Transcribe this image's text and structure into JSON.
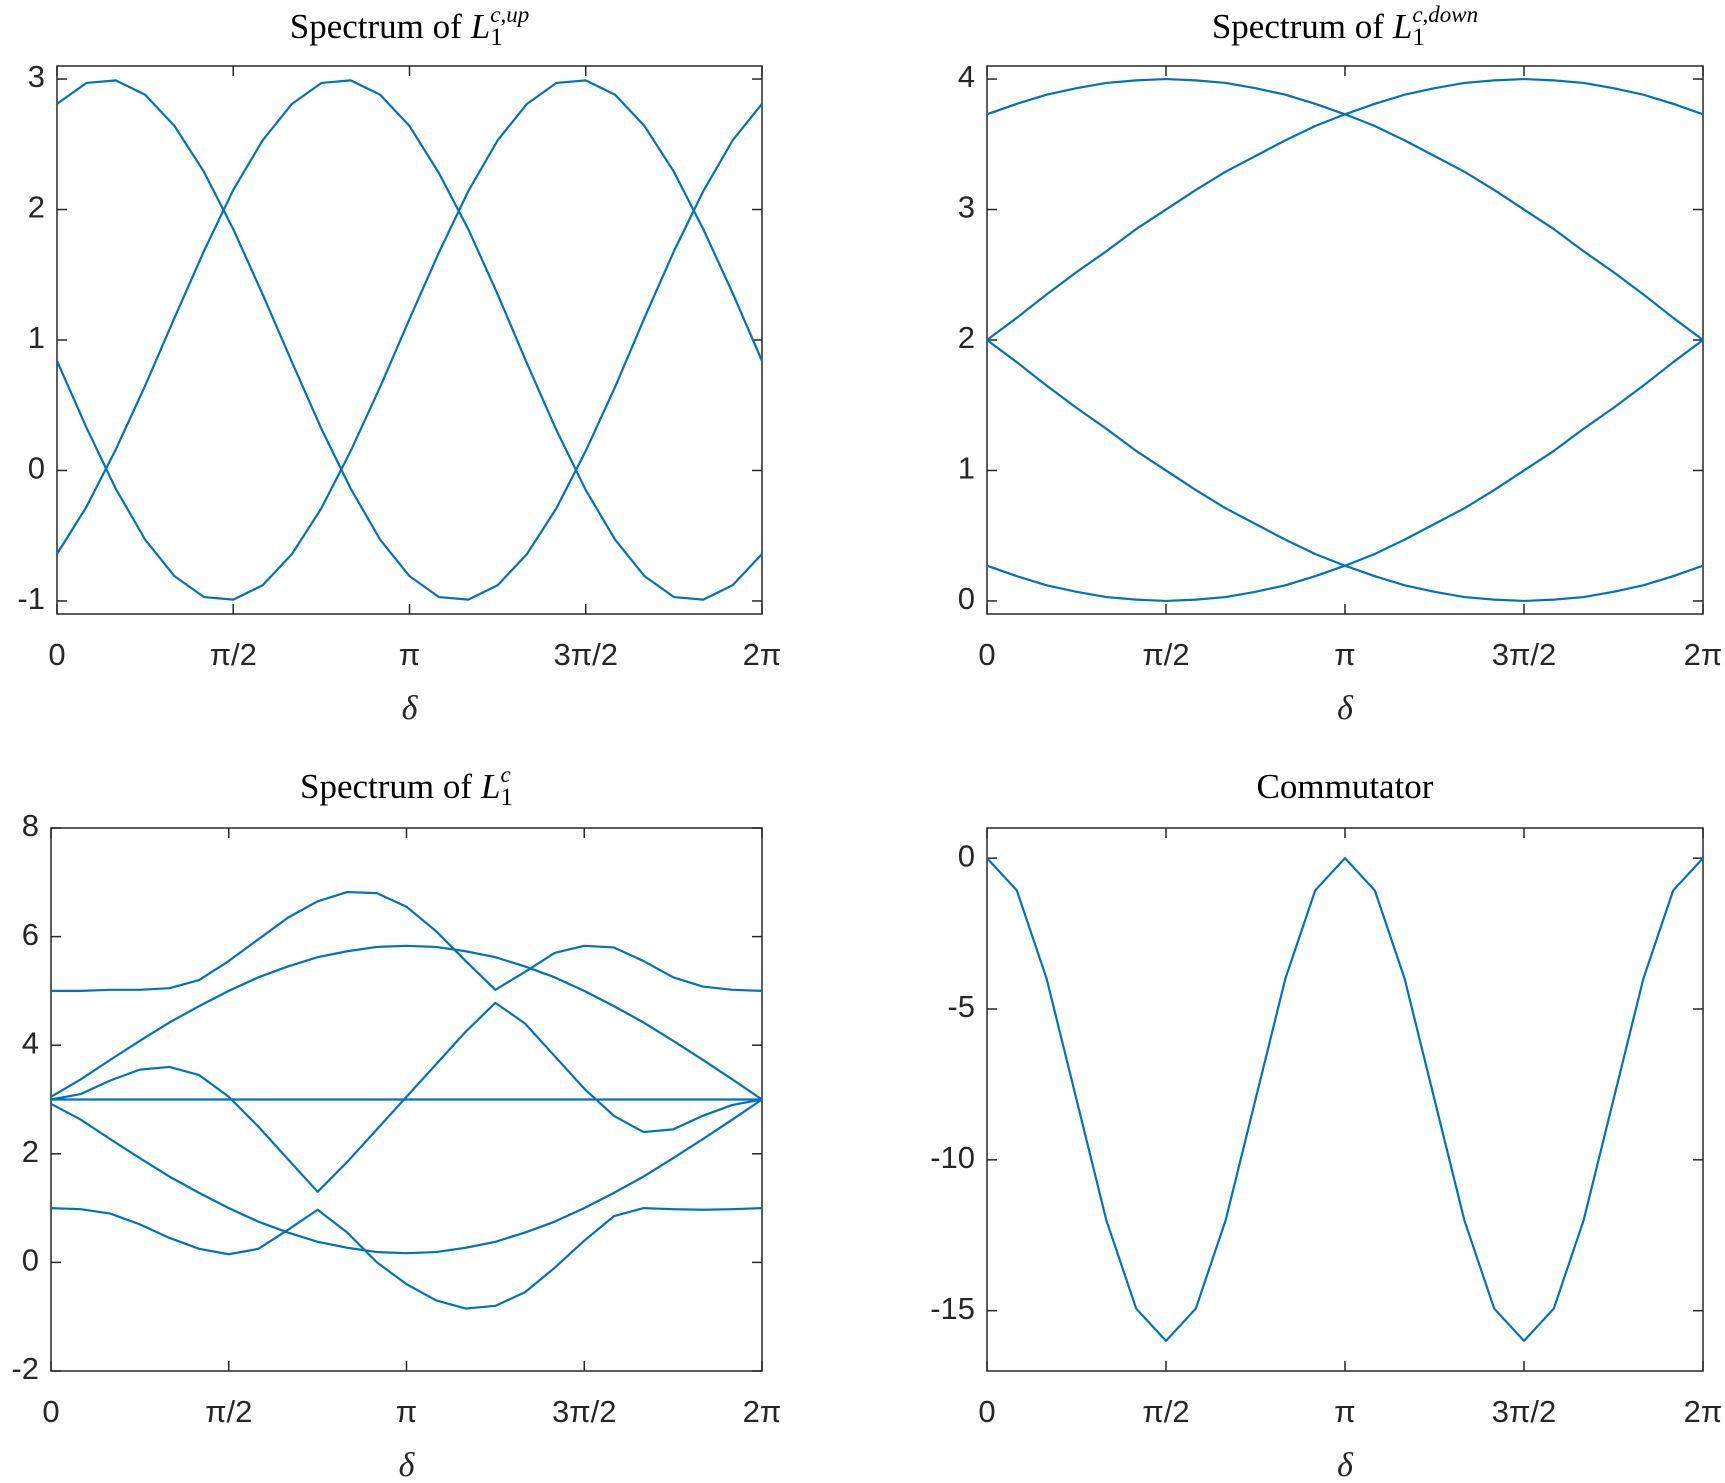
{
  "chart_data": [
    {
      "type": "line",
      "title": {
        "text": "Spectrum of",
        "symbol": "L",
        "subscript": "1",
        "superscript": "c,up"
      },
      "xlabel": "δ",
      "color": "#0072bd",
      "x": [
        0,
        0.2618,
        0.5236,
        0.7854,
        1.0472,
        1.309,
        1.5708,
        1.8326,
        2.0944,
        2.3562,
        2.618,
        2.8798,
        3.1416,
        3.4034,
        3.6652,
        3.927,
        4.1888,
        4.4506,
        4.7124,
        4.9742,
        5.236,
        5.4978,
        5.7596,
        6.0214,
        6.2832
      ],
      "series": [
        {
          "values": [
            2.81,
            2.97,
            2.99,
            2.88,
            2.64,
            2.29,
            1.85,
            1.35,
            0.83,
            0.32,
            -0.14,
            -0.53,
            -0.81,
            -0.97,
            -0.99,
            -0.88,
            -0.64,
            -0.29,
            0.15,
            0.64,
            1.17,
            1.68,
            2.14,
            2.53,
            2.81
          ]
        },
        {
          "values": [
            -0.64,
            -0.28,
            0.16,
            0.65,
            1.17,
            1.68,
            2.15,
            2.53,
            2.81,
            2.97,
            2.99,
            2.88,
            2.64,
            2.28,
            1.85,
            1.35,
            0.82,
            0.31,
            -0.15,
            -0.53,
            -0.81,
            -0.97,
            -0.99,
            -0.88,
            -0.64
          ]
        },
        {
          "values": [
            0.84,
            0.33,
            -0.14,
            -0.53,
            -0.81,
            -0.97,
            -0.99,
            -0.88,
            -0.64,
            -0.29,
            0.15,
            0.64,
            1.16,
            1.67,
            2.14,
            2.53,
            2.81,
            2.97,
            2.99,
            2.88,
            2.64,
            2.29,
            1.85,
            1.36,
            0.84
          ]
        }
      ],
      "xlim": [
        0,
        6.2832
      ],
      "xticks": [
        0,
        {
          "value": 1.5708,
          "label": "π/2"
        },
        {
          "value": 3.1416,
          "label": "π"
        },
        {
          "value": 4.7124,
          "label": "3π/2"
        },
        {
          "value": 6.2832,
          "label": "2π"
        }
      ],
      "ylim": [
        -1.1,
        3.1
      ],
      "yticks": [
        -1,
        0,
        1,
        2,
        3
      ],
      "grid": false
    },
    {
      "type": "line",
      "title": {
        "text": "Spectrum of",
        "symbol": "L",
        "subscript": "1",
        "superscript": "c,down"
      },
      "xlabel": "δ",
      "color": "#0072bd",
      "x": [
        0,
        0.2618,
        0.5236,
        0.7854,
        1.0472,
        1.309,
        1.5708,
        1.8326,
        2.0944,
        2.3562,
        2.618,
        2.8798,
        3.1416,
        3.4034,
        3.6652,
        3.927,
        4.1888,
        4.4506,
        4.7124,
        4.9742,
        5.236,
        5.4978,
        5.7596,
        6.0214,
        6.2832
      ],
      "series": [
        {
          "values": [
            3.73,
            3.81,
            3.88,
            3.93,
            3.97,
            3.99,
            4.0,
            3.99,
            3.97,
            3.93,
            3.88,
            3.81,
            3.73,
            3.64,
            3.53,
            3.41,
            3.29,
            3.15,
            3.0,
            2.85,
            2.68,
            2.52,
            2.35,
            2.17,
            2.0
          ]
        },
        {
          "values": [
            2.0,
            2.17,
            2.35,
            2.52,
            2.68,
            2.85,
            3.0,
            3.15,
            3.29,
            3.41,
            3.53,
            3.64,
            3.73,
            3.81,
            3.88,
            3.93,
            3.97,
            3.99,
            4.0,
            3.99,
            3.97,
            3.93,
            3.88,
            3.81,
            3.73
          ]
        },
        {
          "values": [
            0.27,
            0.19,
            0.12,
            0.07,
            0.03,
            0.01,
            0,
            0.01,
            0.03,
            0.07,
            0.12,
            0.19,
            0.27,
            0.36,
            0.47,
            0.59,
            0.71,
            0.85,
            1.0,
            1.15,
            1.32,
            1.48,
            1.65,
            1.83,
            2.0
          ]
        },
        {
          "values": [
            2.0,
            1.83,
            1.65,
            1.48,
            1.32,
            1.15,
            1.0,
            0.85,
            0.71,
            0.59,
            0.47,
            0.36,
            0.27,
            0.19,
            0.12,
            0.07,
            0.03,
            0.01,
            0,
            0.01,
            0.03,
            0.07,
            0.12,
            0.19,
            0.27
          ]
        }
      ],
      "xlim": [
        0,
        6.2832
      ],
      "xticks": [
        0,
        {
          "value": 1.5708,
          "label": "π/2"
        },
        {
          "value": 3.1416,
          "label": "π"
        },
        {
          "value": 4.7124,
          "label": "3π/2"
        },
        {
          "value": 6.2832,
          "label": "2π"
        }
      ],
      "ylim": [
        -0.1,
        4.1
      ],
      "yticks": [
        0,
        1,
        2,
        3,
        4
      ],
      "grid": false
    },
    {
      "type": "line",
      "title": {
        "text": "Spectrum of",
        "symbol": "L",
        "subscript": "1",
        "superscript": "c"
      },
      "xlabel": "δ",
      "color": "#0072bd",
      "x": [
        0,
        0.2618,
        0.5236,
        0.7854,
        1.0472,
        1.309,
        1.5708,
        1.8326,
        2.0944,
        2.3562,
        2.618,
        2.8798,
        3.1416,
        3.4034,
        3.6652,
        3.927,
        4.1888,
        4.4506,
        4.7124,
        4.9742,
        5.236,
        5.4978,
        5.7596,
        6.0214,
        6.2832
      ],
      "series": [
        {
          "values": [
            5.0,
            5.0,
            5.02,
            5.02,
            5.05,
            5.2,
            5.55,
            5.95,
            6.35,
            6.65,
            6.82,
            6.8,
            6.55,
            6.1,
            5.55,
            5.02,
            5.35,
            5.7,
            5.83,
            5.8,
            5.55,
            5.25,
            5.08,
            5.02,
            5.0
          ]
        },
        {
          "values": [
            3.05,
            3.37,
            3.73,
            4.08,
            4.42,
            4.72,
            5.0,
            5.25,
            5.45,
            5.62,
            5.73,
            5.81,
            5.83,
            5.81,
            5.73,
            5.62,
            5.45,
            5.25,
            5.0,
            4.72,
            4.42,
            4.08,
            3.73,
            3.37,
            3.0
          ]
        },
        {
          "values": [
            3,
            3,
            3,
            3,
            3,
            3,
            3,
            3,
            3,
            3,
            3,
            3,
            3,
            3,
            3,
            3,
            3,
            3,
            3,
            3,
            3,
            3,
            3,
            3,
            3
          ]
        },
        {
          "values": [
            3.0,
            3.1,
            3.35,
            3.55,
            3.6,
            3.45,
            3.05,
            2.5,
            1.9,
            1.3,
            1.85,
            2.45,
            3.05,
            3.65,
            4.25,
            4.78,
            4.4,
            3.8,
            3.2,
            2.7,
            2.4,
            2.45,
            2.7,
            2.9,
            3.0
          ]
        },
        {
          "values": [
            2.92,
            2.63,
            2.27,
            1.92,
            1.58,
            1.28,
            1.0,
            0.75,
            0.55,
            0.38,
            0.27,
            0.19,
            0.17,
            0.19,
            0.27,
            0.38,
            0.55,
            0.75,
            1.0,
            1.28,
            1.58,
            1.92,
            2.27,
            2.63,
            3.0
          ]
        },
        {
          "values": [
            1.0,
            0.98,
            0.9,
            0.7,
            0.45,
            0.25,
            0.15,
            0.25,
            0.6,
            0.97,
            0.55,
            0.0,
            -0.4,
            -0.7,
            -0.85,
            -0.8,
            -0.55,
            -0.1,
            0.4,
            0.85,
            1.0,
            0.98,
            0.97,
            0.98,
            1.0
          ]
        }
      ],
      "xlim": [
        0,
        6.2832
      ],
      "xticks": [
        0,
        {
          "value": 1.5708,
          "label": "π/2"
        },
        {
          "value": 3.1416,
          "label": "π"
        },
        {
          "value": 4.7124,
          "label": "3π/2"
        },
        {
          "value": 6.2832,
          "label": "2π"
        }
      ],
      "ylim": [
        -2,
        8
      ],
      "yticks": [
        -2,
        0,
        2,
        4,
        6,
        8
      ],
      "grid": false
    },
    {
      "type": "line",
      "title": {
        "text": "Commutator"
      },
      "xlabel": "δ",
      "color": "#0072bd",
      "x": [
        0,
        0.2618,
        0.5236,
        0.7854,
        1.0472,
        1.309,
        1.5708,
        1.8326,
        2.0944,
        2.3562,
        2.618,
        2.8798,
        3.1416,
        3.4034,
        3.6652,
        3.927,
        4.1888,
        4.4506,
        4.7124,
        4.9742,
        5.236,
        5.4978,
        5.7596,
        6.0214,
        6.2832
      ],
      "series": [
        {
          "values": [
            0,
            -1.07,
            -4,
            -8,
            -12,
            -14.93,
            -16,
            -14.93,
            -12,
            -8,
            -4,
            -1.07,
            0,
            -1.07,
            -4,
            -8,
            -12,
            -14.93,
            -16,
            -14.93,
            -12,
            -8,
            -4,
            -1.07,
            0
          ]
        }
      ],
      "xlim": [
        0,
        6.2832
      ],
      "xticks": [
        0,
        {
          "value": 1.5708,
          "label": "π/2"
        },
        {
          "value": 3.1416,
          "label": "π"
        },
        {
          "value": 4.7124,
          "label": "3π/2"
        },
        {
          "value": 6.2832,
          "label": "2π"
        }
      ],
      "ylim": [
        -17,
        1
      ],
      "yticks": [
        -15,
        -10,
        -5,
        0
      ],
      "grid": false
    }
  ]
}
